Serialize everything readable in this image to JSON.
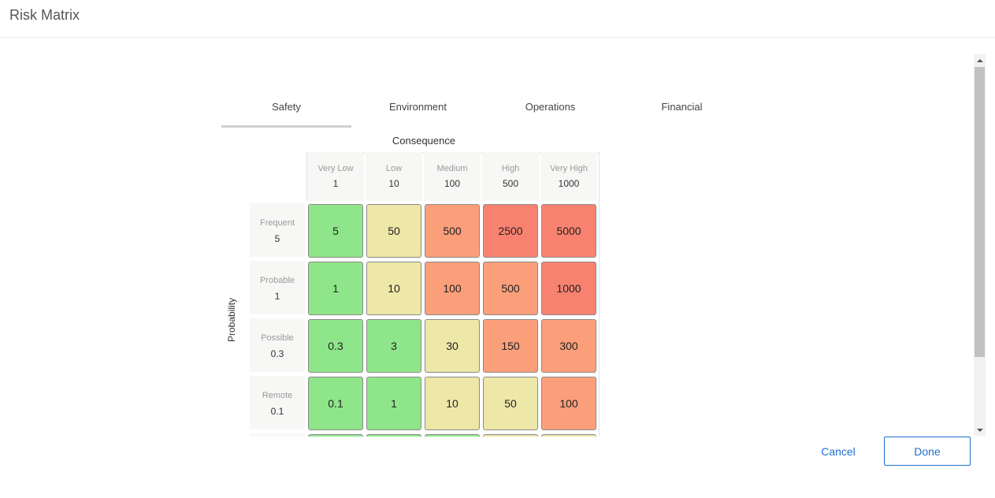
{
  "window": {
    "title": "Risk Matrix"
  },
  "tabs": [
    {
      "label": "Safety",
      "active": true
    },
    {
      "label": "Environment",
      "active": false
    },
    {
      "label": "Operations",
      "active": false
    },
    {
      "label": "Financial",
      "active": false
    }
  ],
  "matrix": {
    "consequence_label": "Consequence",
    "probability_label": "Probability",
    "columns": [
      {
        "name": "Very Low",
        "value": "1"
      },
      {
        "name": "Low",
        "value": "10"
      },
      {
        "name": "Medium",
        "value": "100"
      },
      {
        "name": "High",
        "value": "500"
      },
      {
        "name": "Very High",
        "value": "1000"
      }
    ],
    "rows": [
      {
        "name": "Frequent",
        "value": "5",
        "cells": [
          {
            "value": "5",
            "color": "green"
          },
          {
            "value": "50",
            "color": "yellow"
          },
          {
            "value": "500",
            "color": "orange"
          },
          {
            "value": "2500",
            "color": "red"
          },
          {
            "value": "5000",
            "color": "red"
          }
        ]
      },
      {
        "name": "Probable",
        "value": "1",
        "cells": [
          {
            "value": "1",
            "color": "green"
          },
          {
            "value": "10",
            "color": "yellow"
          },
          {
            "value": "100",
            "color": "orange"
          },
          {
            "value": "500",
            "color": "orange"
          },
          {
            "value": "1000",
            "color": "red"
          }
        ]
      },
      {
        "name": "Possible",
        "value": "0.3",
        "cells": [
          {
            "value": "0.3",
            "color": "green"
          },
          {
            "value": "3",
            "color": "green"
          },
          {
            "value": "30",
            "color": "yellow"
          },
          {
            "value": "150",
            "color": "orange"
          },
          {
            "value": "300",
            "color": "orange"
          }
        ]
      },
      {
        "name": "Remote",
        "value": "0.1",
        "cells": [
          {
            "value": "0.1",
            "color": "green"
          },
          {
            "value": "1",
            "color": "green"
          },
          {
            "value": "10",
            "color": "yellow"
          },
          {
            "value": "50",
            "color": "yellow"
          },
          {
            "value": "100",
            "color": "orange"
          }
        ]
      },
      {
        "name": "",
        "value": "",
        "cells": [
          {
            "value": "",
            "color": "green"
          },
          {
            "value": "",
            "color": "green"
          },
          {
            "value": "",
            "color": "green"
          },
          {
            "value": "",
            "color": "yellow"
          },
          {
            "value": "",
            "color": "yellow"
          }
        ]
      }
    ]
  },
  "colors": {
    "green": "#8fe68a",
    "yellow": "#ede7a8",
    "orange": "#fb9f7a",
    "red": "#f88270",
    "accent": "#1c6fd1"
  },
  "footer": {
    "cancel_label": "Cancel",
    "done_label": "Done"
  }
}
